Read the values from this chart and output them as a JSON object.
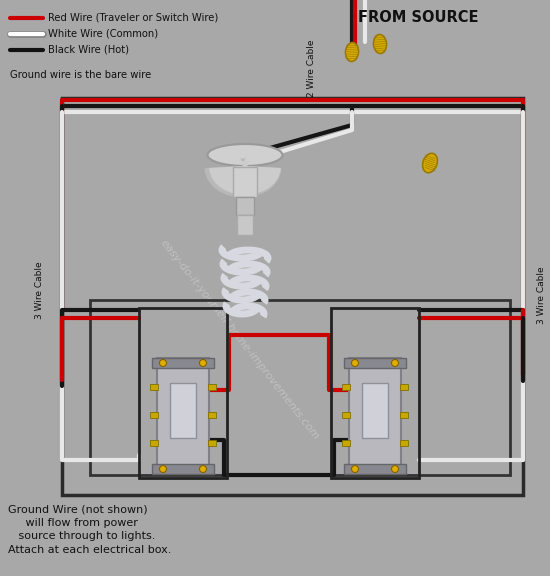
{
  "bg_color": "#a8a8a8",
  "legend_items": [
    {
      "label": "Red Wire (Traveler or Switch Wire)",
      "color": "#cc0000"
    },
    {
      "label": "White Wire (Common)",
      "color": "#ffffff"
    },
    {
      "label": "Black Wire (Hot)",
      "color": "#111111"
    }
  ],
  "legend_note": "Ground wire is the bare wire",
  "bottom_note": "Ground Wire (not shown)\n     will flow from power\n   source through to lights.\nAttach at each electrical box.",
  "from_source_label": "FROM SOURCE",
  "label_2wire": "2 Wire Cable",
  "label_3wire_left": "3 Wire Cable",
  "label_3wire_right": "3 Wire Cable",
  "watermark": "easy-do-it-yourself-home-improvements.com",
  "red": "#cc0000",
  "white": "#e8e8e8",
  "black": "#151515",
  "yellow": "#d4aa00",
  "dark_yellow": "#9a7800",
  "box_edge": "#2a2a2a",
  "switch_metal": "#b0b0b8",
  "switch_dark": "#888890"
}
